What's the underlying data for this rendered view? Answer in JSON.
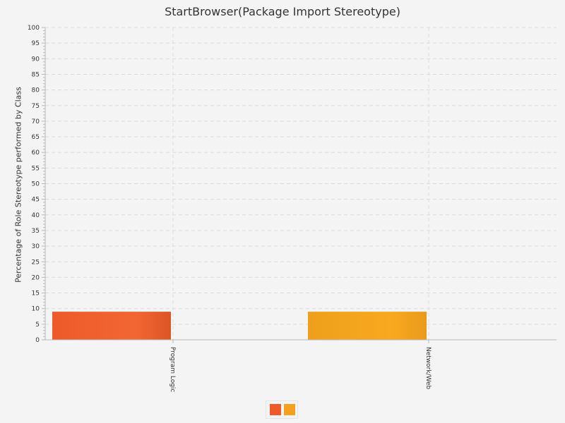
{
  "chart_data": {
    "type": "bar",
    "title": "StartBrowser(Package Import Stereotype)",
    "xlabel": "",
    "ylabel": "Percentage of Role Stereotype performed by Class",
    "ylim": [
      0,
      100
    ],
    "yticks_major": [
      0,
      5,
      10,
      15,
      20,
      25,
      30,
      35,
      40,
      45,
      50,
      55,
      60,
      65,
      70,
      75,
      80,
      85,
      90,
      95,
      100
    ],
    "categories": [
      "Program Logic",
      "Network/Web"
    ],
    "values": [
      9,
      9
    ],
    "bar_colors": [
      "#ee5a2a",
      "#f6a11e"
    ],
    "grid": true,
    "legend_placement": "bottom-center",
    "legend_colors": [
      "#ee5a2a",
      "#f6a11e"
    ]
  }
}
